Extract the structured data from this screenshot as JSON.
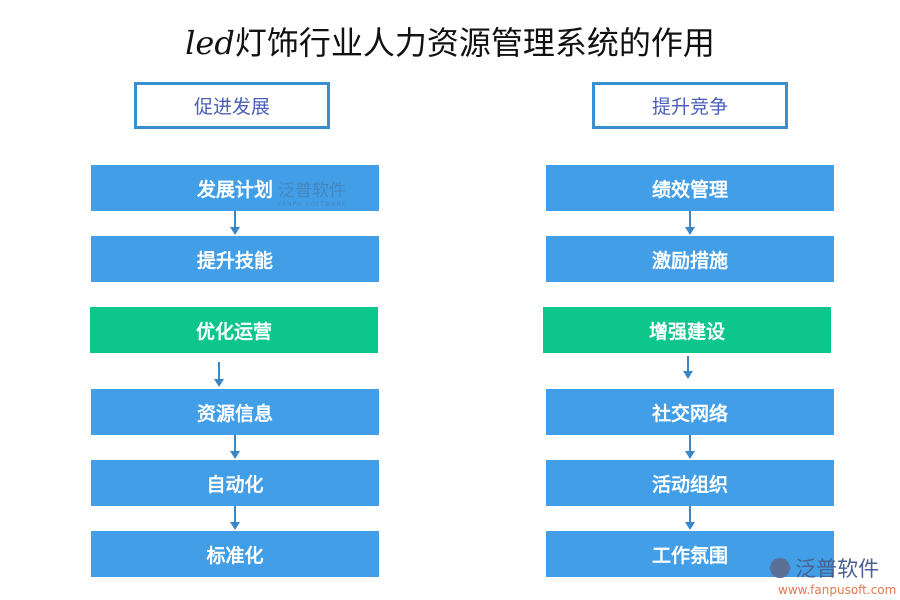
{
  "title": {
    "prefix": "led",
    "rest": "灯饰行业人力资源管理系统的作用"
  },
  "left": {
    "header": "促进发展",
    "boxes": [
      "发展计划",
      "提升技能",
      "优化运营",
      "资源信息",
      "自动化",
      "标准化"
    ]
  },
  "right": {
    "header": "提升竞争",
    "boxes": [
      "绩效管理",
      "激励措施",
      "增强建设",
      "社交网络",
      "活动组织",
      "工作氛围"
    ]
  },
  "watermark": {
    "brand": "泛普软件",
    "sub": "FANPU SOFTWARE",
    "url": "www.fanpusoft.com"
  },
  "colors": {
    "blue": "#429ee6",
    "green": "#0dc68a",
    "border": "#3a8fd0"
  }
}
